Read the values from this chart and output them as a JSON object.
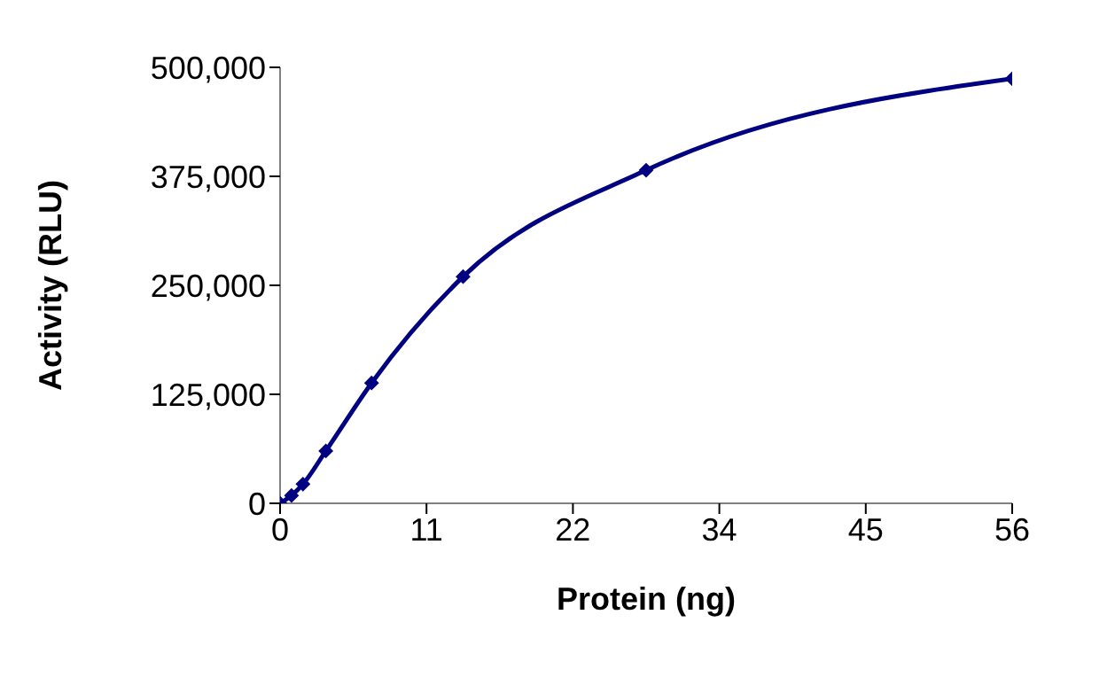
{
  "chart_data": {
    "type": "line",
    "xlabel": "Protein (ng)",
    "ylabel": "Activity (RLU)",
    "x": [
      0,
      0.875,
      1.75,
      3.5,
      7,
      14,
      28,
      56
    ],
    "series": [
      {
        "color": "#000080",
        "values": [
          0,
          9000,
          22000,
          60000,
          138000,
          260000,
          382000,
          487000
        ]
      }
    ],
    "xlim": [
      0,
      56
    ],
    "xticks": [
      0,
      {
        "value": 11.2,
        "label": "11"
      },
      {
        "value": 22.4,
        "label": "22"
      },
      {
        "value": 33.6,
        "label": "34"
      },
      {
        "value": 44.8,
        "label": "45"
      },
      56
    ],
    "ylim": [
      0,
      500000
    ],
    "yticks": [
      {
        "value": 0,
        "label": "0"
      },
      {
        "value": 125000,
        "label": "125,000"
      },
      {
        "value": 250000,
        "label": "250,000"
      },
      {
        "value": 375000,
        "label": "375,000"
      },
      {
        "value": 500000,
        "label": "500,000"
      }
    ],
    "grid": false,
    "legend": false,
    "marker": "diamond",
    "line_style": "solid"
  }
}
